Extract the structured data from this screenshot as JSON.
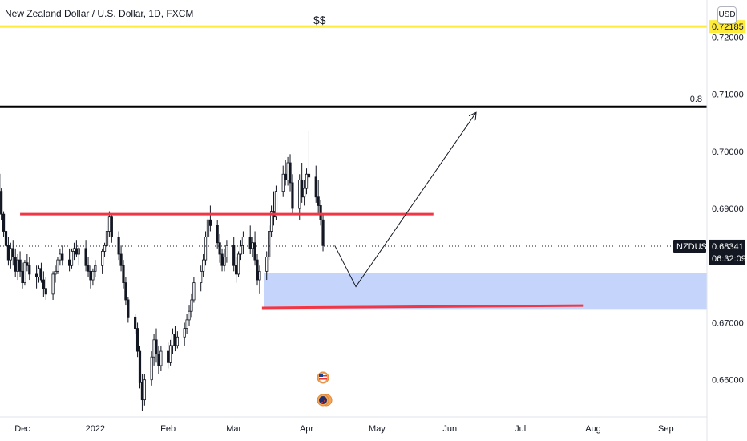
{
  "header": {
    "symbol_title": "New Zealand Dollar / U.S. Dollar, 1D, FXCM",
    "annotation": "$$",
    "currency_button": "USD"
  },
  "colors": {
    "up": "#ffffff",
    "down": "#131722",
    "support_zone": "#c5d4fb",
    "red_line": "#f23645",
    "yellow_line": "#ffeb3b",
    "black_line": "#000000"
  },
  "chart_data": {
    "type": "candlestick",
    "y_range": [
      0.6535,
      0.7265
    ],
    "price_ticks": [
      "0.72000",
      "0.71000",
      "0.70000",
      "0.69000",
      "0.67000",
      "0.66000"
    ],
    "time_ticks": [
      {
        "label": "Dec",
        "day": 0
      },
      {
        "label": "2022",
        "day": 31
      },
      {
        "label": "Feb",
        "day": 62
      },
      {
        "label": "Mar",
        "day": 90
      },
      {
        "label": "Apr",
        "day": 121
      },
      {
        "label": "May",
        "day": 151
      },
      {
        "label": "Jun",
        "day": 182
      },
      {
        "label": "Jul",
        "day": 212
      },
      {
        "label": "Aug",
        "day": 243
      },
      {
        "label": "Sep",
        "day": 274
      }
    ],
    "last_price": {
      "symbol": "NZDUSD",
      "price": "0.68341",
      "countdown": "06:32:09",
      "value": 0.68341
    },
    "levels": [
      {
        "name": "yellow-level",
        "price": 0.72185,
        "label": "0.72185"
      },
      {
        "name": "black-level",
        "price": 0.7078,
        "label": "0.8"
      }
    ],
    "drawn_lines": [
      {
        "name": "upper-red-line",
        "from": {
          "day": -1,
          "price": 0.689
        },
        "to": {
          "day": 175,
          "price": 0.689
        }
      },
      {
        "name": "lower-red-line",
        "from": {
          "day": 102,
          "price": 0.6726
        },
        "to": {
          "day": 239,
          "price": 0.673
        }
      }
    ],
    "zone": {
      "from_day": 103,
      "to_day": 310,
      "price_top": 0.6787,
      "price_bottom": 0.6724
    },
    "path": [
      {
        "day": 133,
        "price": 0.6835
      },
      {
        "day": 142,
        "price": 0.6763
      },
      {
        "day": 193,
        "price": 0.7067
      }
    ],
    "ohlc": [
      [
        -12,
        0.7,
        0.7015,
        0.698,
        0.6985
      ],
      [
        -11,
        0.6985,
        0.699,
        0.695,
        0.696
      ],
      [
        -10,
        0.696,
        0.6965,
        0.692,
        0.693
      ],
      [
        -9,
        0.693,
        0.6935,
        0.688,
        0.689
      ],
      [
        -8,
        0.689,
        0.6895,
        0.685,
        0.686
      ],
      [
        -7,
        0.686,
        0.6875,
        0.683,
        0.6835
      ],
      [
        -6,
        0.6835,
        0.685,
        0.68,
        0.681
      ],
      [
        -5,
        0.681,
        0.684,
        0.6795,
        0.683
      ],
      [
        -4,
        0.683,
        0.6845,
        0.68,
        0.6815
      ],
      [
        -3,
        0.6815,
        0.683,
        0.678,
        0.679
      ],
      [
        -2,
        0.679,
        0.682,
        0.6775,
        0.681
      ],
      [
        -1,
        0.681,
        0.6825,
        0.678,
        0.679
      ],
      [
        0,
        0.679,
        0.6805,
        0.676,
        0.677
      ],
      [
        1,
        0.677,
        0.681,
        0.6765,
        0.6805
      ],
      [
        2,
        0.6805,
        0.682,
        0.679,
        0.68
      ],
      [
        3,
        0.68,
        0.6815,
        0.6775,
        0.6785
      ],
      [
        6,
        0.6785,
        0.68,
        0.676,
        0.678
      ],
      [
        7,
        0.678,
        0.68,
        0.677,
        0.6795
      ],
      [
        8,
        0.6795,
        0.6805,
        0.677,
        0.6775
      ],
      [
        9,
        0.6775,
        0.679,
        0.6745,
        0.676
      ],
      [
        10,
        0.676,
        0.678,
        0.674,
        0.675
      ],
      [
        13,
        0.675,
        0.679,
        0.674,
        0.6785
      ],
      [
        14,
        0.6785,
        0.68,
        0.677,
        0.679
      ],
      [
        15,
        0.679,
        0.6815,
        0.6785,
        0.681
      ],
      [
        16,
        0.681,
        0.683,
        0.68,
        0.682
      ],
      [
        17,
        0.682,
        0.6835,
        0.68,
        0.681
      ],
      [
        20,
        0.681,
        0.683,
        0.679,
        0.68
      ],
      [
        21,
        0.68,
        0.683,
        0.6795,
        0.6825
      ],
      [
        22,
        0.6825,
        0.684,
        0.681,
        0.683
      ],
      [
        23,
        0.683,
        0.6845,
        0.6815,
        0.682
      ],
      [
        24,
        0.682,
        0.6835,
        0.68,
        0.683
      ],
      [
        27,
        0.683,
        0.6845,
        0.679,
        0.68
      ],
      [
        28,
        0.68,
        0.6815,
        0.678,
        0.679
      ],
      [
        29,
        0.679,
        0.68,
        0.676,
        0.6775
      ],
      [
        30,
        0.6775,
        0.6795,
        0.6765,
        0.679
      ],
      [
        31,
        0.679,
        0.681,
        0.678,
        0.68
      ],
      [
        34,
        0.68,
        0.683,
        0.6785,
        0.6825
      ],
      [
        35,
        0.6825,
        0.684,
        0.6815,
        0.6835
      ],
      [
        36,
        0.6835,
        0.687,
        0.683,
        0.686
      ],
      [
        37,
        0.686,
        0.6895,
        0.685,
        0.6885
      ],
      [
        38,
        0.6885,
        0.689,
        0.684,
        0.685
      ],
      [
        41,
        0.685,
        0.686,
        0.681,
        0.682
      ],
      [
        42,
        0.682,
        0.6835,
        0.679,
        0.68
      ],
      [
        43,
        0.68,
        0.681,
        0.676,
        0.677
      ],
      [
        44,
        0.677,
        0.678,
        0.673,
        0.674
      ],
      [
        45,
        0.674,
        0.6745,
        0.67,
        0.671
      ],
      [
        48,
        0.671,
        0.6715,
        0.668,
        0.669
      ],
      [
        49,
        0.669,
        0.67,
        0.664,
        0.665
      ],
      [
        50,
        0.665,
        0.666,
        0.6585,
        0.6595
      ],
      [
        51,
        0.6595,
        0.661,
        0.6545,
        0.6565
      ],
      [
        52,
        0.6565,
        0.661,
        0.6555,
        0.66
      ],
      [
        55,
        0.66,
        0.665,
        0.659,
        0.664
      ],
      [
        56,
        0.664,
        0.668,
        0.6625,
        0.667
      ],
      [
        57,
        0.667,
        0.669,
        0.663,
        0.6645
      ],
      [
        58,
        0.6645,
        0.666,
        0.661,
        0.6625
      ],
      [
        59,
        0.6625,
        0.666,
        0.6615,
        0.665
      ],
      [
        62,
        0.665,
        0.6665,
        0.662,
        0.663
      ],
      [
        63,
        0.663,
        0.667,
        0.6625,
        0.666
      ],
      [
        64,
        0.666,
        0.669,
        0.6645,
        0.668
      ],
      [
        65,
        0.668,
        0.6695,
        0.665,
        0.666
      ],
      [
        66,
        0.666,
        0.6685,
        0.6655,
        0.6675
      ],
      [
        69,
        0.6675,
        0.67,
        0.666,
        0.669
      ],
      [
        70,
        0.669,
        0.6715,
        0.668,
        0.6705
      ],
      [
        71,
        0.6705,
        0.673,
        0.6695,
        0.672
      ],
      [
        72,
        0.672,
        0.675,
        0.671,
        0.674
      ],
      [
        73,
        0.674,
        0.678,
        0.6735,
        0.677
      ],
      [
        76,
        0.677,
        0.68,
        0.6755,
        0.679
      ],
      [
        77,
        0.679,
        0.682,
        0.678,
        0.681
      ],
      [
        78,
        0.681,
        0.686,
        0.68,
        0.685
      ],
      [
        79,
        0.685,
        0.6895,
        0.684,
        0.688
      ],
      [
        80,
        0.688,
        0.6905,
        0.686,
        0.687
      ],
      [
        83,
        0.687,
        0.688,
        0.683,
        0.684
      ],
      [
        84,
        0.684,
        0.6855,
        0.6805,
        0.682
      ],
      [
        85,
        0.682,
        0.683,
        0.679,
        0.68
      ],
      [
        86,
        0.68,
        0.683,
        0.679,
        0.6815
      ],
      [
        87,
        0.6815,
        0.6845,
        0.6805,
        0.6835
      ],
      [
        90,
        0.6835,
        0.685,
        0.679,
        0.68
      ],
      [
        91,
        0.68,
        0.6815,
        0.677,
        0.6785
      ],
      [
        92,
        0.6785,
        0.6825,
        0.678,
        0.682
      ],
      [
        93,
        0.682,
        0.6845,
        0.681,
        0.6835
      ],
      [
        94,
        0.6835,
        0.686,
        0.682,
        0.685
      ],
      [
        97,
        0.685,
        0.687,
        0.682,
        0.683
      ],
      [
        98,
        0.683,
        0.685,
        0.6815,
        0.684
      ],
      [
        99,
        0.684,
        0.686,
        0.68,
        0.681
      ],
      [
        100,
        0.681,
        0.682,
        0.6765,
        0.6775
      ],
      [
        101,
        0.6775,
        0.68,
        0.675,
        0.679
      ],
      [
        104,
        0.679,
        0.6825,
        0.6775,
        0.6815
      ],
      [
        105,
        0.6815,
        0.687,
        0.681,
        0.686
      ],
      [
        106,
        0.686,
        0.6905,
        0.685,
        0.6895
      ],
      [
        107,
        0.6895,
        0.693,
        0.687,
        0.6885
      ],
      [
        108,
        0.6885,
        0.694,
        0.688,
        0.693
      ],
      [
        111,
        0.693,
        0.6975,
        0.692,
        0.696
      ],
      [
        112,
        0.696,
        0.6985,
        0.694,
        0.695
      ],
      [
        113,
        0.695,
        0.699,
        0.694,
        0.698
      ],
      [
        114,
        0.698,
        0.6995,
        0.693,
        0.6945
      ],
      [
        115,
        0.6945,
        0.696,
        0.689,
        0.69
      ],
      [
        118,
        0.69,
        0.696,
        0.688,
        0.695
      ],
      [
        119,
        0.695,
        0.698,
        0.691,
        0.692
      ],
      [
        120,
        0.692,
        0.695,
        0.6905,
        0.6935
      ],
      [
        121,
        0.6935,
        0.697,
        0.6925,
        0.696
      ],
      [
        122,
        0.696,
        0.7035,
        0.6945,
        0.6955
      ],
      [
        125,
        0.6955,
        0.6975,
        0.691,
        0.692
      ],
      [
        126,
        0.692,
        0.695,
        0.689,
        0.6905
      ],
      [
        127,
        0.6905,
        0.6915,
        0.687,
        0.688
      ],
      [
        128,
        0.688,
        0.689,
        0.6825,
        0.6835
      ]
    ]
  }
}
